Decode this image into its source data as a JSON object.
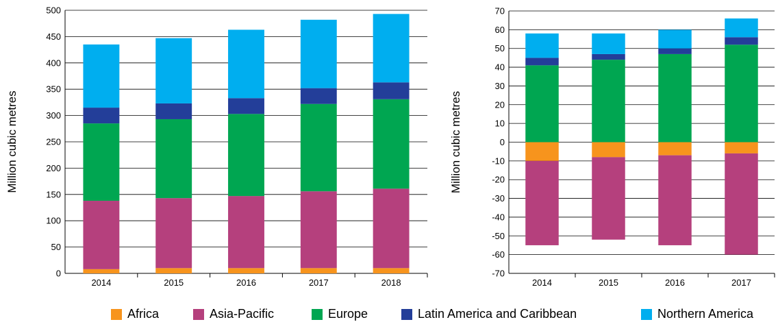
{
  "chart_data": [
    {
      "type": "bar",
      "stacked": true,
      "categories": [
        "2014",
        "2015",
        "2016",
        "2017",
        "2018"
      ],
      "ylabel": "Million cubic metres",
      "ylim": [
        0,
        500
      ],
      "yticks": [
        "500",
        "450",
        "400",
        "350",
        "300",
        "250",
        "200",
        "150",
        "100",
        "50",
        "0"
      ],
      "grid": true,
      "series": [
        {
          "name": "Africa",
          "values": [
            8,
            10,
            10,
            10,
            10
          ]
        },
        {
          "name": "Asia-Pacific",
          "values": [
            130,
            133,
            137,
            146,
            151
          ]
        },
        {
          "name": "Europe",
          "values": [
            147,
            150,
            156,
            166,
            170
          ]
        },
        {
          "name": "Latin America and Caribbean",
          "values": [
            30,
            30,
            30,
            30,
            32
          ]
        },
        {
          "name": "Northern America",
          "values": [
            120,
            124,
            130,
            130,
            130
          ]
        }
      ]
    },
    {
      "type": "bar",
      "stacked": true,
      "categories": [
        "2014",
        "2015",
        "2016",
        "2017"
      ],
      "ylabel": "Million cubic metres",
      "ylim": [
        -70,
        70
      ],
      "yticks": [
        "70",
        "60",
        "50",
        "40",
        "30",
        "20",
        "10",
        "0",
        "-10",
        "-20",
        "-30",
        "-40",
        "-50",
        "-60",
        "-70"
      ],
      "grid": true,
      "series": [
        {
          "name": "Africa",
          "values": [
            -10,
            -8,
            -7,
            -6
          ]
        },
        {
          "name": "Asia-Pacific",
          "values": [
            -45,
            -44,
            -48,
            -54
          ]
        },
        {
          "name": "Europe",
          "values": [
            41,
            44,
            47,
            52
          ]
        },
        {
          "name": "Latin America and Caribbean",
          "values": [
            4,
            3,
            3,
            4
          ]
        },
        {
          "name": "Northern America",
          "values": [
            13,
            11,
            10,
            10
          ]
        }
      ]
    }
  ],
  "legend": [
    {
      "label": "Africa",
      "color": "#f7941d"
    },
    {
      "label": "Asia-Pacific",
      "color": "#b5407d"
    },
    {
      "label": "Europe",
      "color": "#00a651"
    },
    {
      "label": "Latin America and Caribbean",
      "color": "#233e99"
    },
    {
      "label": "Northern America",
      "color": "#00aeef"
    }
  ]
}
